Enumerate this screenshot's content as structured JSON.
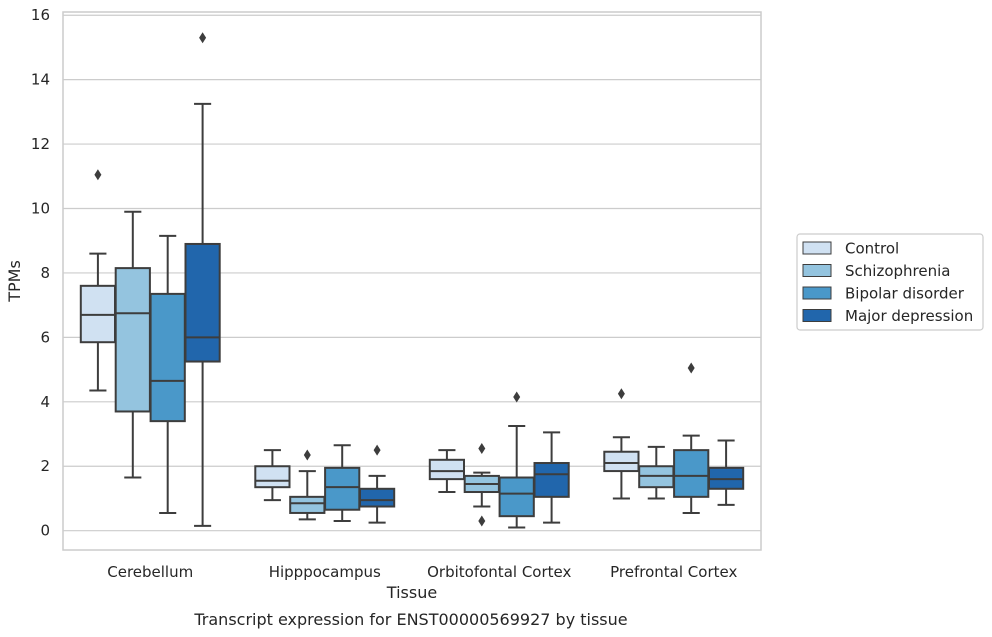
{
  "chart_data": {
    "type": "box",
    "title": "",
    "caption": "Transcript expression for ENST00000569927 by tissue",
    "xlabel": "Tissue",
    "ylabel": "TPMs",
    "ylim": [
      -0.6,
      16.1
    ],
    "yticks": [
      0,
      2,
      4,
      6,
      8,
      10,
      12,
      14,
      16
    ],
    "grid": "horizontal",
    "legend_position": "right",
    "categories": [
      "Cerebellum",
      "Hipppocampus",
      "Orbitofontal Cortex",
      "Prefrontal Cortex"
    ],
    "series": [
      {
        "name": "Control",
        "color": "#d0e1f2",
        "boxes": [
          {
            "whislo": 4.35,
            "q1": 5.85,
            "med": 6.7,
            "q3": 7.6,
            "whishi": 8.6,
            "fliers": [
              11.05
            ]
          },
          {
            "whislo": 0.95,
            "q1": 1.35,
            "med": 1.55,
            "q3": 2.0,
            "whishi": 2.5,
            "fliers": []
          },
          {
            "whislo": 1.2,
            "q1": 1.6,
            "med": 1.85,
            "q3": 2.2,
            "whishi": 2.5,
            "fliers": []
          },
          {
            "whislo": 1.0,
            "q1": 1.85,
            "med": 2.1,
            "q3": 2.45,
            "whishi": 2.9,
            "fliers": [
              4.25
            ]
          }
        ]
      },
      {
        "name": "Schizophrenia",
        "color": "#94c4df",
        "boxes": [
          {
            "whislo": 1.65,
            "q1": 3.7,
            "med": 6.75,
            "q3": 8.15,
            "whishi": 9.9,
            "fliers": []
          },
          {
            "whislo": 0.35,
            "q1": 0.55,
            "med": 0.85,
            "q3": 1.05,
            "whishi": 1.85,
            "fliers": [
              2.35
            ]
          },
          {
            "whislo": 0.75,
            "q1": 1.2,
            "med": 1.45,
            "q3": 1.7,
            "whishi": 1.8,
            "fliers": [
              2.55,
              0.3
            ]
          },
          {
            "whislo": 1.0,
            "q1": 1.35,
            "med": 1.7,
            "q3": 2.0,
            "whishi": 2.6,
            "fliers": []
          }
        ]
      },
      {
        "name": "Bipolar disorder",
        "color": "#4a98c9",
        "boxes": [
          {
            "whislo": 0.55,
            "q1": 3.4,
            "med": 4.65,
            "q3": 7.35,
            "whishi": 9.15,
            "fliers": []
          },
          {
            "whislo": 0.3,
            "q1": 0.65,
            "med": 1.35,
            "q3": 1.95,
            "whishi": 2.65,
            "fliers": []
          },
          {
            "whislo": 0.1,
            "q1": 0.45,
            "med": 1.15,
            "q3": 1.65,
            "whishi": 3.25,
            "fliers": [
              4.15
            ]
          },
          {
            "whislo": 0.55,
            "q1": 1.05,
            "med": 1.7,
            "q3": 2.5,
            "whishi": 2.95,
            "fliers": [
              5.05
            ]
          }
        ]
      },
      {
        "name": "Major depression",
        "color": "#2166ac",
        "boxes": [
          {
            "whislo": 0.15,
            "q1": 5.25,
            "med": 6.0,
            "q3": 8.9,
            "whishi": 13.25,
            "fliers": [
              15.3
            ]
          },
          {
            "whislo": 0.25,
            "q1": 0.75,
            "med": 0.95,
            "q3": 1.3,
            "whishi": 1.7,
            "fliers": [
              2.5
            ]
          },
          {
            "whislo": 0.25,
            "q1": 1.05,
            "med": 1.75,
            "q3": 2.1,
            "whishi": 3.05,
            "fliers": []
          },
          {
            "whislo": 0.8,
            "q1": 1.3,
            "med": 1.6,
            "q3": 1.95,
            "whishi": 2.8,
            "fliers": []
          }
        ]
      }
    ]
  }
}
